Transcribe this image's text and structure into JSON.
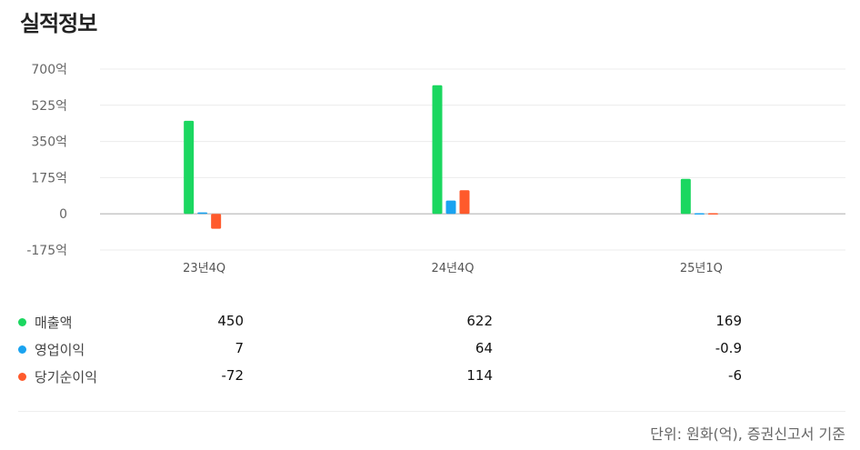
{
  "title": "실적정보",
  "footnote": "단위: 원화(억), 증권신고서 기준",
  "chart_data": {
    "type": "bar",
    "categories": [
      "23년4Q",
      "24년4Q",
      "25년1Q"
    ],
    "series": [
      {
        "name": "매출액",
        "values": [
          450,
          622,
          169
        ],
        "display": [
          "450",
          "622",
          "169"
        ],
        "color": "#1bd760"
      },
      {
        "name": "영업이익",
        "values": [
          7,
          64,
          -0.9
        ],
        "display": [
          "7",
          "64",
          "-0.9"
        ],
        "color": "#1aa3f0"
      },
      {
        "name": "당기순이익",
        "values": [
          -72,
          114,
          -6
        ],
        "display": [
          "-72",
          "114",
          "-6"
        ],
        "color": "#ff5a2c"
      }
    ],
    "yticks": [
      700,
      525,
      350,
      175,
      0,
      -175
    ],
    "ytick_labels": [
      "700억",
      "525억",
      "350억",
      "175억",
      "0",
      "-175억"
    ],
    "ylim": [
      -175,
      700
    ],
    "grid": true
  }
}
